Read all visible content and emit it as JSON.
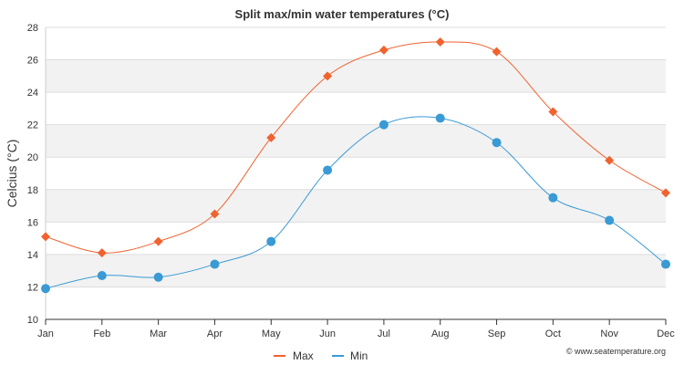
{
  "chart_data": {
    "type": "line",
    "title": "Split max/min water temperatures (°C)",
    "xlabel": "",
    "ylabel": "Celcius (°C)",
    "categories": [
      "Jan",
      "Feb",
      "Mar",
      "Apr",
      "May",
      "Jun",
      "Jul",
      "Aug",
      "Sep",
      "Oct",
      "Nov",
      "Dec"
    ],
    "ylim": [
      10,
      28
    ],
    "yticks": [
      10,
      12,
      14,
      16,
      18,
      20,
      22,
      24,
      26,
      28
    ],
    "grid": true,
    "legend_position": "bottom-center",
    "series": [
      {
        "name": "Max",
        "color": "#f0622f",
        "marker": "diamond",
        "values": [
          15.1,
          14.1,
          14.8,
          16.5,
          21.2,
          25.0,
          26.6,
          27.1,
          26.5,
          22.8,
          19.8,
          17.8
        ]
      },
      {
        "name": "Min",
        "color": "#3a9ad4",
        "marker": "circle",
        "values": [
          11.9,
          12.7,
          12.6,
          13.4,
          14.8,
          19.2,
          22.0,
          22.4,
          20.9,
          17.5,
          16.1,
          13.4
        ]
      }
    ],
    "credit": "© www.seatemperature.org"
  }
}
